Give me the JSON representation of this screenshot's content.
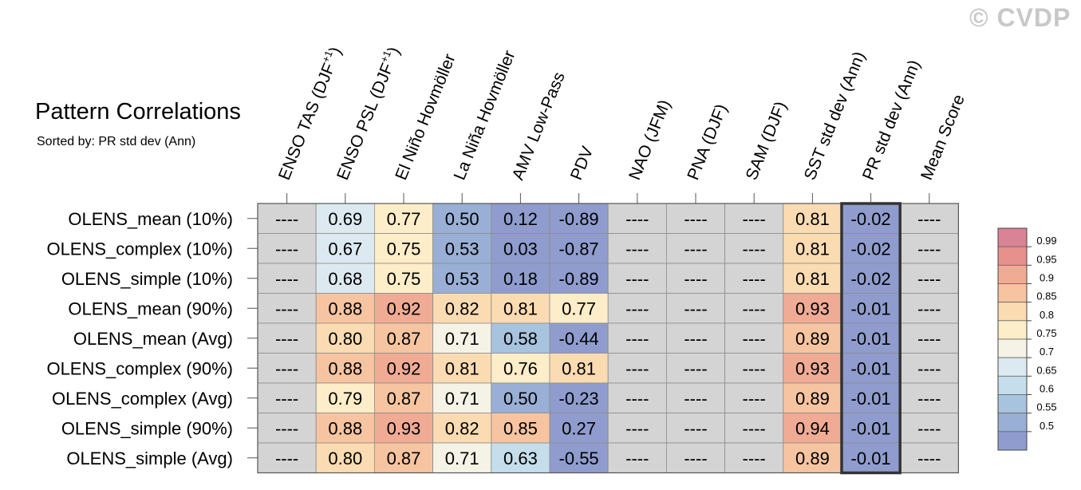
{
  "copyright": "© CVDP",
  "chart_data": {
    "type": "heatmap",
    "title": "Pattern Correlations",
    "subtitle": "Sorted by: PR std dev (Ann)",
    "columns": [
      {
        "name": "ENSO TAS",
        "season": "DJF",
        "sup": "+1"
      },
      {
        "name": "ENSO PSL",
        "season": "DJF",
        "sup": "+1"
      },
      {
        "name": "El Niño Hovmöller"
      },
      {
        "name": "La Niña Hovmöller"
      },
      {
        "name": "AMV Low-Pass"
      },
      {
        "name": "PDV"
      },
      {
        "name": "NAO (JFM)"
      },
      {
        "name": "PNA (DJF)"
      },
      {
        "name": "SAM (DJF)"
      },
      {
        "name": "SST std dev (Ann)"
      },
      {
        "name": "PR std dev (Ann)"
      },
      {
        "name": "Mean Score"
      }
    ],
    "rows": [
      {
        "label": "OLENS_mean (10%)",
        "values": [
          "----",
          "0.69",
          "0.77",
          "0.50",
          "0.12",
          "-0.89",
          "----",
          "----",
          "----",
          "0.81",
          "-0.02",
          "----"
        ]
      },
      {
        "label": "OLENS_complex (10%)",
        "values": [
          "----",
          "0.67",
          "0.75",
          "0.53",
          "0.03",
          "-0.87",
          "----",
          "----",
          "----",
          "0.81",
          "-0.02",
          "----"
        ]
      },
      {
        "label": "OLENS_simple (10%)",
        "values": [
          "----",
          "0.68",
          "0.75",
          "0.53",
          "0.18",
          "-0.89",
          "----",
          "----",
          "----",
          "0.81",
          "-0.02",
          "----"
        ]
      },
      {
        "label": "OLENS_mean (90%)",
        "values": [
          "----",
          "0.88",
          "0.92",
          "0.82",
          "0.81",
          "0.77",
          "----",
          "----",
          "----",
          "0.93",
          "-0.01",
          "----"
        ]
      },
      {
        "label": "OLENS_mean (Avg)",
        "values": [
          "----",
          "0.80",
          "0.87",
          "0.71",
          "0.58",
          "-0.44",
          "----",
          "----",
          "----",
          "0.89",
          "-0.01",
          "----"
        ]
      },
      {
        "label": "OLENS_complex (90%)",
        "values": [
          "----",
          "0.88",
          "0.92",
          "0.81",
          "0.76",
          "0.81",
          "----",
          "----",
          "----",
          "0.93",
          "-0.01",
          "----"
        ]
      },
      {
        "label": "OLENS_complex (Avg)",
        "values": [
          "----",
          "0.79",
          "0.87",
          "0.71",
          "0.50",
          "-0.23",
          "----",
          "----",
          "----",
          "0.89",
          "-0.01",
          "----"
        ]
      },
      {
        "label": "OLENS_simple (90%)",
        "values": [
          "----",
          "0.88",
          "0.93",
          "0.82",
          "0.85",
          "0.27",
          "----",
          "----",
          "----",
          "0.94",
          "-0.01",
          "----"
        ]
      },
      {
        "label": "OLENS_simple (Avg)",
        "values": [
          "----",
          "0.80",
          "0.87",
          "0.71",
          "0.63",
          "-0.55",
          "----",
          "----",
          "----",
          "0.89",
          "-0.01",
          "----"
        ]
      }
    ],
    "highlight_column": "PR std dev (Ann)",
    "missing_color": "#d4d4d4",
    "colorbar": {
      "levels": [
        "0.99",
        "0.95",
        "0.9",
        "0.85",
        "0.8",
        "0.75",
        "0.7",
        "0.65",
        "0.6",
        "0.55",
        "0.5"
      ],
      "colors": [
        "#da8296",
        "#e7918c",
        "#f0ab95",
        "#f6c4a0",
        "#fadbb2",
        "#fdedc8",
        "#f4f3e6",
        "#dde9f1",
        "#c6ddeb",
        "#a8c3de",
        "#9aafd5",
        "#8f9ccd"
      ]
    }
  }
}
